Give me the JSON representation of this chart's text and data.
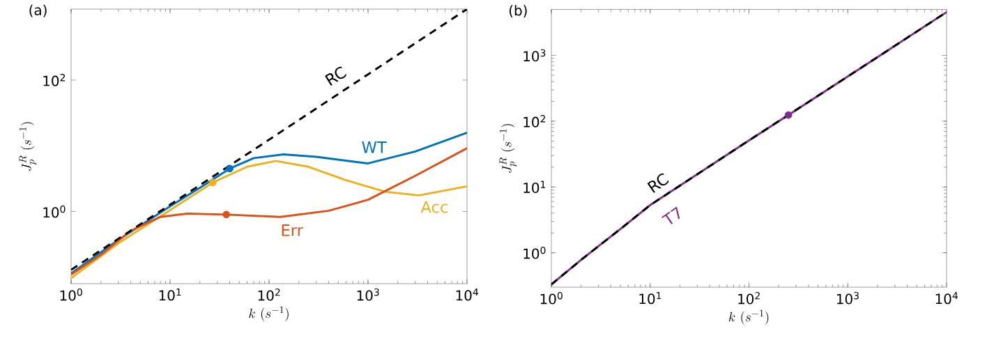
{
  "chart_data": [
    {
      "type": "line",
      "title": "(a)",
      "xlabel": "k\\ (s^{-1})",
      "ylabel": "J_p^R\\ (s^{-1})",
      "log": "xy",
      "legend": false,
      "xlim": [
        1,
        10000
      ],
      "ylim": [
        0.08,
        1200
      ],
      "xticks": [
        {
          "value": 1,
          "label": "10$^{0}$"
        },
        {
          "value": 10,
          "label": "10$^{1}$"
        },
        {
          "value": 100,
          "label": "10$^{2}$"
        },
        {
          "value": 1000,
          "label": "10$^{3}$"
        },
        {
          "value": 10000,
          "label": "10$^{4}$"
        }
      ],
      "yticks": [
        {
          "value": 1,
          "label": "10$^{0}$"
        },
        {
          "value": 100,
          "label": "10$^{2}$"
        }
      ],
      "series": [
        {
          "name": "WT",
          "color": "#0072bd",
          "line_style": "solid",
          "x": [
            1,
            3,
            10,
            20,
            40,
            70,
            140,
            300,
            1000,
            3000,
            10000
          ],
          "values": [
            0.115,
            0.37,
            1.2,
            2.3,
            4.5,
            6.5,
            7.4,
            6.8,
            5.4,
            8.2,
            15.8
          ]
        },
        {
          "type": "scatter",
          "marker": "circle",
          "color": "#0072bd",
          "x": [
            40
          ],
          "values": [
            4.5
          ]
        },
        {
          "name": "Acc",
          "color": "#edb120",
          "line_style": "solid",
          "x": [
            1,
            3,
            10,
            27,
            60,
            117,
            250,
            600,
            1500,
            3250,
            10000
          ],
          "values": [
            0.097,
            0.33,
            1.05,
            2.76,
            4.8,
            5.9,
            4.8,
            3.0,
            2.0,
            1.76,
            2.42
          ]
        },
        {
          "type": "scatter",
          "marker": "circle",
          "color": "#edb120",
          "x": [
            27
          ],
          "values": [
            2.76
          ]
        },
        {
          "name": "Err",
          "color": "#d95319",
          "line_style": "solid",
          "x": [
            1,
            2,
            4,
            8,
            15,
            37,
            130,
            400,
            1000,
            3000,
            10000
          ],
          "values": [
            0.11,
            0.22,
            0.51,
            0.83,
            0.93,
            0.9,
            0.83,
            1.03,
            1.51,
            3.5,
            9.2
          ]
        },
        {
          "type": "scatter",
          "marker": "circle",
          "color": "#d95319",
          "x": [
            37
          ],
          "values": [
            0.9
          ]
        },
        {
          "name": "RC",
          "color": "#000000",
          "line_style": "dashed",
          "x": [
            1,
            10,
            100,
            1000,
            10000
          ],
          "values": [
            0.13,
            1.27,
            12.4,
            122,
            1200
          ]
        }
      ]
    },
    {
      "type": "line",
      "title": "(b)",
      "xlabel": "k\\ (s^{-1})",
      "ylabel": "J_p^R\\ (s^{-1})",
      "log": "xy",
      "legend": false,
      "xlim": [
        1,
        10000
      ],
      "ylim": [
        0.3,
        5000
      ],
      "xticks": [
        {
          "value": 1,
          "label": "10$^{0}$"
        },
        {
          "value": 10,
          "label": "10$^{1}$"
        },
        {
          "value": 100,
          "label": "10$^{2}$"
        },
        {
          "value": 1000,
          "label": "10$^{3}$"
        },
        {
          "value": 10000,
          "label": "10$^{4}$"
        }
      ],
      "yticks": [
        {
          "value": 1,
          "label": "10$^{0}$"
        },
        {
          "value": 10,
          "label": "10$^{1}$"
        },
        {
          "value": 100,
          "label": "10$^{2}$"
        },
        {
          "value": 1000,
          "label": "10$^{3}$"
        }
      ],
      "series": [
        {
          "name": "T7",
          "color": "#7e2f8e",
          "line_style": "solid",
          "x": [
            1,
            2,
            3,
            5,
            10,
            100,
            251,
            1000,
            10000
          ],
          "values": [
            0.33,
            0.78,
            1.26,
            2.3,
            5.3,
            51,
            124,
            478,
            4550
          ]
        },
        {
          "type": "scatter",
          "marker": "circle",
          "color": "#7e2f8e",
          "x": [
            251
          ],
          "values": [
            124
          ]
        },
        {
          "name": "RC",
          "color": "#000000",
          "line_style": "dashed",
          "x": [
            1,
            2,
            3,
            5,
            10,
            100,
            1000,
            10000
          ],
          "values": [
            0.33,
            0.78,
            1.26,
            2.3,
            5.3,
            51,
            478,
            4550
          ]
        }
      ]
    }
  ]
}
